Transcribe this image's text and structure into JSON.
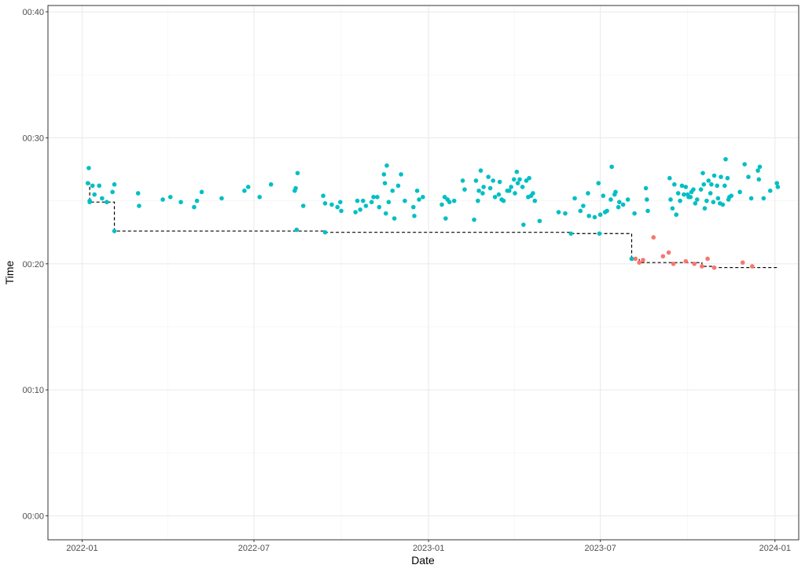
{
  "chart_data": {
    "type": "scatter",
    "xlabel": "Date",
    "ylabel": "Time",
    "x_ticks": [
      "2022-01",
      "2022-07",
      "2023-01",
      "2023-07",
      "2024-01"
    ],
    "y_ticks": [
      "00:00",
      "00:10",
      "00:20",
      "00:30",
      "00:40"
    ],
    "xlim": [
      "2021-11-26",
      "2024-01-26"
    ],
    "ylim_minutes": [
      -1.9,
      40.5
    ],
    "grid": true,
    "legend": "none",
    "colors": {
      "personal_best": "#F8766D",
      "regular": "#00BFC4",
      "best_line": "#000000"
    },
    "series": [
      {
        "color_key": "regular",
        "points": [
          [
            "2022-01-07",
            26.4
          ],
          [
            "2022-01-08",
            27.6
          ],
          [
            "2022-01-09",
            25.0
          ],
          [
            "2022-01-12",
            26.2
          ],
          [
            "2022-01-14",
            25.5
          ],
          [
            "2022-01-19",
            26.2
          ],
          [
            "2022-01-22",
            25.2
          ],
          [
            "2022-01-27",
            24.9
          ],
          [
            "2022-02-02",
            25.7
          ],
          [
            "2022-02-04",
            26.3
          ],
          [
            "2022-03-01",
            25.6
          ],
          [
            "2022-03-02",
            24.6
          ],
          [
            "2022-03-27",
            25.1
          ],
          [
            "2022-04-04",
            25.3
          ],
          [
            "2022-04-15",
            24.9
          ],
          [
            "2022-04-29",
            24.5
          ],
          [
            "2022-05-02",
            25.0
          ],
          [
            "2022-05-07",
            25.7
          ],
          [
            "2022-05-28",
            25.2
          ],
          [
            "2022-06-21",
            25.8
          ],
          [
            "2022-06-25",
            26.1
          ],
          [
            "2022-07-07",
            25.3
          ],
          [
            "2022-07-19",
            26.3
          ],
          [
            "2022-08-13",
            25.8
          ],
          [
            "2022-08-14",
            26.0
          ],
          [
            "2022-08-16",
            27.2
          ],
          [
            "2022-08-22",
            24.6
          ],
          [
            "2022-09-12",
            25.4
          ],
          [
            "2022-09-14",
            24.8
          ],
          [
            "2022-09-21",
            24.7
          ],
          [
            "2022-09-27",
            24.5
          ],
          [
            "2022-09-30",
            24.9
          ],
          [
            "2022-10-01",
            24.2
          ],
          [
            "2022-10-16",
            24.1
          ],
          [
            "2022-10-18",
            25.0
          ],
          [
            "2022-10-21",
            24.3
          ],
          [
            "2022-10-24",
            25.0
          ],
          [
            "2022-10-27",
            24.6
          ],
          [
            "2022-11-02",
            24.9
          ],
          [
            "2022-11-04",
            25.3
          ],
          [
            "2022-11-08",
            25.3
          ],
          [
            "2022-11-10",
            24.5
          ],
          [
            "2022-11-15",
            27.1
          ],
          [
            "2022-11-16",
            26.4
          ],
          [
            "2022-11-17",
            24.0
          ],
          [
            "2022-11-18",
            27.8
          ],
          [
            "2022-11-20",
            24.9
          ],
          [
            "2022-11-24",
            25.8
          ],
          [
            "2022-11-26",
            23.6
          ],
          [
            "2022-11-30",
            26.2
          ],
          [
            "2022-12-03",
            27.1
          ],
          [
            "2022-12-07",
            25.0
          ],
          [
            "2022-12-16",
            24.5
          ],
          [
            "2022-12-17",
            23.8
          ],
          [
            "2022-12-20",
            25.8
          ],
          [
            "2022-12-22",
            25.1
          ],
          [
            "2022-12-26",
            25.3
          ],
          [
            "2023-01-15",
            24.7
          ],
          [
            "2023-01-18",
            25.3
          ],
          [
            "2023-01-19",
            23.6
          ],
          [
            "2023-01-21",
            25.1
          ],
          [
            "2023-01-23",
            24.9
          ],
          [
            "2023-01-28",
            25.0
          ],
          [
            "2023-02-06",
            26.6
          ],
          [
            "2023-02-08",
            25.9
          ],
          [
            "2023-02-18",
            23.5
          ],
          [
            "2023-02-20",
            26.6
          ],
          [
            "2023-02-22",
            25.0
          ],
          [
            "2023-02-23",
            25.8
          ],
          [
            "2023-02-25",
            27.4
          ],
          [
            "2023-02-27",
            25.6
          ],
          [
            "2023-02-28",
            26.1
          ],
          [
            "2023-03-05",
            26.9
          ],
          [
            "2023-03-07",
            26.0
          ],
          [
            "2023-03-10",
            26.6
          ],
          [
            "2023-03-12",
            25.3
          ],
          [
            "2023-03-16",
            25.5
          ],
          [
            "2023-03-17",
            26.5
          ],
          [
            "2023-03-19",
            25.1
          ],
          [
            "2023-03-21",
            25.0
          ],
          [
            "2023-03-25",
            25.8
          ],
          [
            "2023-03-27",
            25.8
          ],
          [
            "2023-03-29",
            26.1
          ],
          [
            "2023-04-01",
            26.7
          ],
          [
            "2023-04-02",
            25.6
          ],
          [
            "2023-04-04",
            27.3
          ],
          [
            "2023-04-05",
            26.4
          ],
          [
            "2023-04-07",
            26.7
          ],
          [
            "2023-04-10",
            26.1
          ],
          [
            "2023-04-11",
            23.1
          ],
          [
            "2023-04-14",
            26.6
          ],
          [
            "2023-04-16",
            25.3
          ],
          [
            "2023-04-17",
            26.8
          ],
          [
            "2023-04-19",
            25.4
          ],
          [
            "2023-04-21",
            25.6
          ],
          [
            "2023-04-23",
            25.0
          ],
          [
            "2023-04-28",
            23.4
          ],
          [
            "2023-05-18",
            24.1
          ],
          [
            "2023-05-25",
            24.0
          ],
          [
            "2023-06-04",
            25.2
          ],
          [
            "2023-06-10",
            24.2
          ],
          [
            "2023-06-13",
            24.6
          ],
          [
            "2023-06-18",
            25.6
          ],
          [
            "2023-06-19",
            23.8
          ],
          [
            "2023-06-25",
            23.7
          ],
          [
            "2023-06-29",
            26.4
          ],
          [
            "2023-07-01",
            23.9
          ],
          [
            "2023-07-04",
            25.4
          ],
          [
            "2023-07-06",
            24.1
          ],
          [
            "2023-07-08",
            24.2
          ],
          [
            "2023-07-12",
            25.1
          ],
          [
            "2023-07-13",
            27.7
          ],
          [
            "2023-07-16",
            25.5
          ],
          [
            "2023-07-17",
            25.7
          ],
          [
            "2023-07-20",
            24.5
          ],
          [
            "2023-07-21",
            24.9
          ],
          [
            "2023-07-25",
            24.7
          ],
          [
            "2023-07-30",
            25.1
          ],
          [
            "2023-08-06",
            24.0
          ],
          [
            "2023-08-18",
            26.0
          ],
          [
            "2023-08-19",
            25.1
          ],
          [
            "2023-08-20",
            24.2
          ],
          [
            "2023-09-12",
            26.8
          ],
          [
            "2023-09-13",
            25.1
          ],
          [
            "2023-09-15",
            24.4
          ],
          [
            "2023-09-17",
            26.3
          ],
          [
            "2023-09-19",
            23.9
          ],
          [
            "2023-09-21",
            25.6
          ],
          [
            "2023-09-23",
            25.0
          ],
          [
            "2023-09-25",
            26.2
          ],
          [
            "2023-09-27",
            25.5
          ],
          [
            "2023-09-29",
            26.1
          ],
          [
            "2023-10-01",
            25.5
          ],
          [
            "2023-10-02",
            25.3
          ],
          [
            "2023-10-04",
            25.3
          ],
          [
            "2023-10-05",
            25.7
          ],
          [
            "2023-10-07",
            25.9
          ],
          [
            "2023-10-09",
            24.8
          ],
          [
            "2023-10-11",
            25.1
          ],
          [
            "2023-10-15",
            25.9
          ],
          [
            "2023-10-17",
            27.2
          ],
          [
            "2023-10-18",
            26.3
          ],
          [
            "2023-10-19",
            24.4
          ],
          [
            "2023-10-21",
            25.0
          ],
          [
            "2023-10-23",
            26.6
          ],
          [
            "2023-10-25",
            25.6
          ],
          [
            "2023-10-26",
            26.3
          ],
          [
            "2023-10-28",
            24.9
          ],
          [
            "2023-10-29",
            27.0
          ],
          [
            "2023-11-01",
            26.2
          ],
          [
            "2023-11-02",
            25.2
          ],
          [
            "2023-11-04",
            24.8
          ],
          [
            "2023-11-05",
            26.9
          ],
          [
            "2023-11-07",
            24.7
          ],
          [
            "2023-11-09",
            26.2
          ],
          [
            "2023-11-10",
            28.3
          ],
          [
            "2023-11-12",
            26.8
          ],
          [
            "2023-11-13",
            25.1
          ],
          [
            "2023-11-14",
            25.3
          ],
          [
            "2023-11-16",
            25.4
          ],
          [
            "2023-11-25",
            25.7
          ],
          [
            "2023-11-30",
            27.9
          ],
          [
            "2023-12-04",
            26.9
          ],
          [
            "2023-12-07",
            25.2
          ],
          [
            "2023-12-14",
            27.4
          ],
          [
            "2023-12-15",
            26.7
          ],
          [
            "2023-12-16",
            27.7
          ],
          [
            "2023-12-20",
            25.2
          ],
          [
            "2023-12-27",
            25.8
          ],
          [
            "2024-01-03",
            26.4
          ],
          [
            "2024-01-04",
            26.1
          ]
        ]
      },
      {
        "color_key": "personal_best",
        "points": [
          [
            "2023-08-03",
            20.4
          ],
          [
            "2023-08-07",
            20.4
          ],
          [
            "2023-08-11",
            20.1
          ],
          [
            "2023-08-15",
            20.3
          ],
          [
            "2023-08-26",
            22.1
          ],
          [
            "2023-09-05",
            20.6
          ],
          [
            "2023-09-11",
            20.9
          ],
          [
            "2023-09-16",
            20.0
          ],
          [
            "2023-09-29",
            20.2
          ],
          [
            "2023-10-08",
            20.0
          ],
          [
            "2023-10-16",
            19.8
          ],
          [
            "2023-10-22",
            20.4
          ],
          [
            "2023-10-29",
            19.7
          ],
          [
            "2023-11-28",
            20.1
          ],
          [
            "2023-12-08",
            19.8
          ]
        ]
      },
      {
        "color_key": "personal_best_dark",
        "points": [
          [
            "2022-01-09",
            24.9
          ],
          [
            "2022-02-04",
            22.6
          ],
          [
            "2022-08-15",
            22.7
          ],
          [
            "2022-09-14",
            22.5
          ],
          [
            "2023-05-31",
            22.4
          ],
          [
            "2023-06-30",
            22.4
          ],
          [
            "2023-08-03",
            20.4
          ]
        ]
      }
    ],
    "step_line": [
      [
        "2022-01-07",
        26.4
      ],
      [
        "2022-01-09",
        24.9
      ],
      [
        "2022-02-04",
        22.6
      ],
      [
        "2022-08-15",
        22.6
      ],
      [
        "2022-09-14",
        22.5
      ],
      [
        "2023-05-31",
        22.4
      ],
      [
        "2023-08-03",
        20.4
      ],
      [
        "2023-08-11",
        20.1
      ],
      [
        "2023-10-16",
        19.8
      ],
      [
        "2023-10-29",
        19.7
      ],
      [
        "2024-01-04",
        19.7
      ]
    ]
  }
}
